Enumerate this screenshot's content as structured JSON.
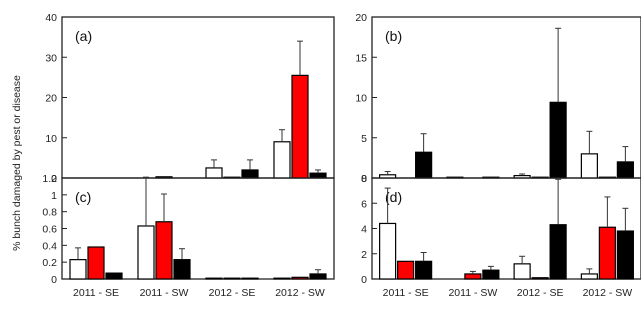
{
  "ylabel": "% bunch damaged by pest or disease",
  "colors": {
    "white": "#ffffff",
    "red": "#ff0000",
    "black": "#000000"
  },
  "chart_data": [
    {
      "type": "bar",
      "panel": "(a)",
      "categories": [
        "2011 - SE",
        "2011 - SW",
        "2012 - SE",
        "2012 - SW"
      ],
      "ylim": [
        0,
        40
      ],
      "yticks": [
        "0",
        "10",
        "20",
        "30",
        "40"
      ],
      "series": [
        {
          "color": "white",
          "values": [
            0,
            0,
            2.5,
            9
          ],
          "errors": [
            0,
            0,
            2,
            3
          ]
        },
        {
          "color": "red",
          "values": [
            0,
            0.3,
            0.2,
            25.5
          ],
          "errors": [
            0,
            0,
            0,
            8.5
          ]
        },
        {
          "color": "black",
          "values": [
            0,
            0,
            2,
            1.2
          ],
          "errors": [
            0,
            0,
            2.5,
            0.8
          ]
        }
      ]
    },
    {
      "type": "bar",
      "panel": "(b)",
      "categories": [
        "2011 - SE",
        "2011 - SW",
        "2012 - SE",
        "2012 - SW"
      ],
      "ylim": [
        0,
        20
      ],
      "yticks": [
        "0",
        "5",
        "10",
        "15",
        "20"
      ],
      "series": [
        {
          "color": "white",
          "values": [
            0.4,
            0.1,
            0.3,
            3
          ],
          "errors": [
            0.4,
            0,
            0.2,
            2.8
          ]
        },
        {
          "color": "red",
          "values": [
            0,
            0,
            0.1,
            0.1
          ],
          "errors": [
            0,
            0,
            0,
            0
          ]
        },
        {
          "color": "black",
          "values": [
            3.2,
            0.1,
            9.4,
            2
          ],
          "errors": [
            2.3,
            0,
            9.2,
            1.9
          ]
        }
      ]
    },
    {
      "type": "bar",
      "panel": "(c)",
      "categories": [
        "2011 - SE",
        "2011 - SW",
        "2012 - SE",
        "2012 - SW"
      ],
      "ylim": [
        0,
        1.2
      ],
      "yticks": [
        "0",
        "0.2",
        "0.4",
        "0.6",
        "0.8",
        "1",
        "1.2"
      ],
      "series": [
        {
          "color": "white",
          "values": [
            0.23,
            0.63,
            0.01,
            0.01
          ],
          "errors": [
            0.14,
            0.58,
            0,
            0
          ]
        },
        {
          "color": "red",
          "values": [
            0.38,
            0.68,
            0.01,
            0.02
          ],
          "errors": [
            0,
            0.33,
            0,
            0
          ]
        },
        {
          "color": "black",
          "values": [
            0.07,
            0.23,
            0.01,
            0.06
          ],
          "errors": [
            0,
            0.13,
            0,
            0.05
          ]
        }
      ]
    },
    {
      "type": "bar",
      "panel": "(d)",
      "categories": [
        "2011 - SE",
        "2011 - SW",
        "2012 - SE",
        "2012 - SW"
      ],
      "ylim": [
        0,
        8
      ],
      "yticks": [
        "0",
        "2",
        "4",
        "6",
        "8"
      ],
      "series": [
        {
          "color": "white",
          "values": [
            4.4,
            0,
            1.2,
            0.4
          ],
          "errors": [
            2.8,
            0,
            0.6,
            0.4
          ]
        },
        {
          "color": "red",
          "values": [
            1.4,
            0.4,
            0.1,
            4.1
          ],
          "errors": [
            0,
            0.2,
            0,
            2.4
          ]
        },
        {
          "color": "black",
          "values": [
            1.4,
            0.7,
            4.3,
            3.8
          ],
          "errors": [
            0.7,
            0.3,
            3.6,
            1.8
          ]
        }
      ]
    }
  ]
}
